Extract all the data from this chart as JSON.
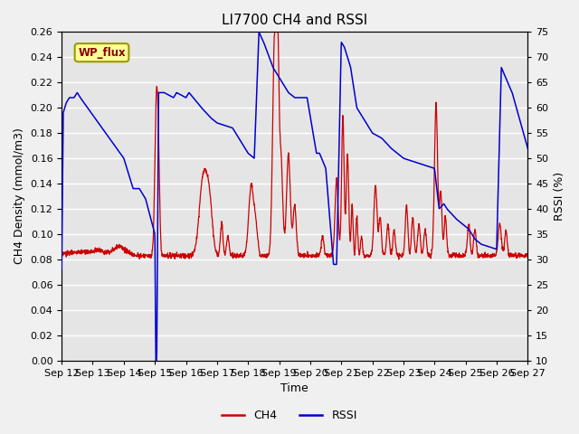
{
  "title": "LI7700 CH4 and RSSI",
  "xlabel": "Time",
  "ylabel_left": "CH4 Density (mmol/m3)",
  "ylabel_right": "RSSI (%)",
  "ylim_left": [
    0.0,
    0.26
  ],
  "ylim_right": [
    10,
    75
  ],
  "yticks_left": [
    0.0,
    0.02,
    0.04,
    0.06,
    0.08,
    0.1,
    0.12,
    0.14,
    0.16,
    0.18,
    0.2,
    0.22,
    0.24,
    0.26
  ],
  "yticks_right": [
    10,
    15,
    20,
    25,
    30,
    35,
    40,
    45,
    50,
    55,
    60,
    65,
    70,
    75
  ],
  "xtick_labels": [
    "Sep 12",
    "Sep 13",
    "Sep 14",
    "Sep 15",
    "Sep 16",
    "Sep 17",
    "Sep 18",
    "Sep 19",
    "Sep 20",
    "Sep 21",
    "Sep 22",
    "Sep 23",
    "Sep 24",
    "Sep 25",
    "Sep 26",
    "Sep 27"
  ],
  "ch4_color": "#cc0000",
  "rssi_color": "#0000cc",
  "bg_color": "#e5e5e5",
  "grid_color": "#ffffff",
  "fig_bg_color": "#f0f0f0",
  "title_fontsize": 11,
  "label_fontsize": 9,
  "tick_fontsize": 8,
  "legend_label_ch4": "CH4",
  "legend_label_rssi": "RSSI",
  "wp_flux_label": "WP_flux",
  "wp_flux_bg": "#ffff99",
  "wp_flux_border": "#999900",
  "linewidth_ch4": 0.9,
  "linewidth_rssi": 1.1
}
